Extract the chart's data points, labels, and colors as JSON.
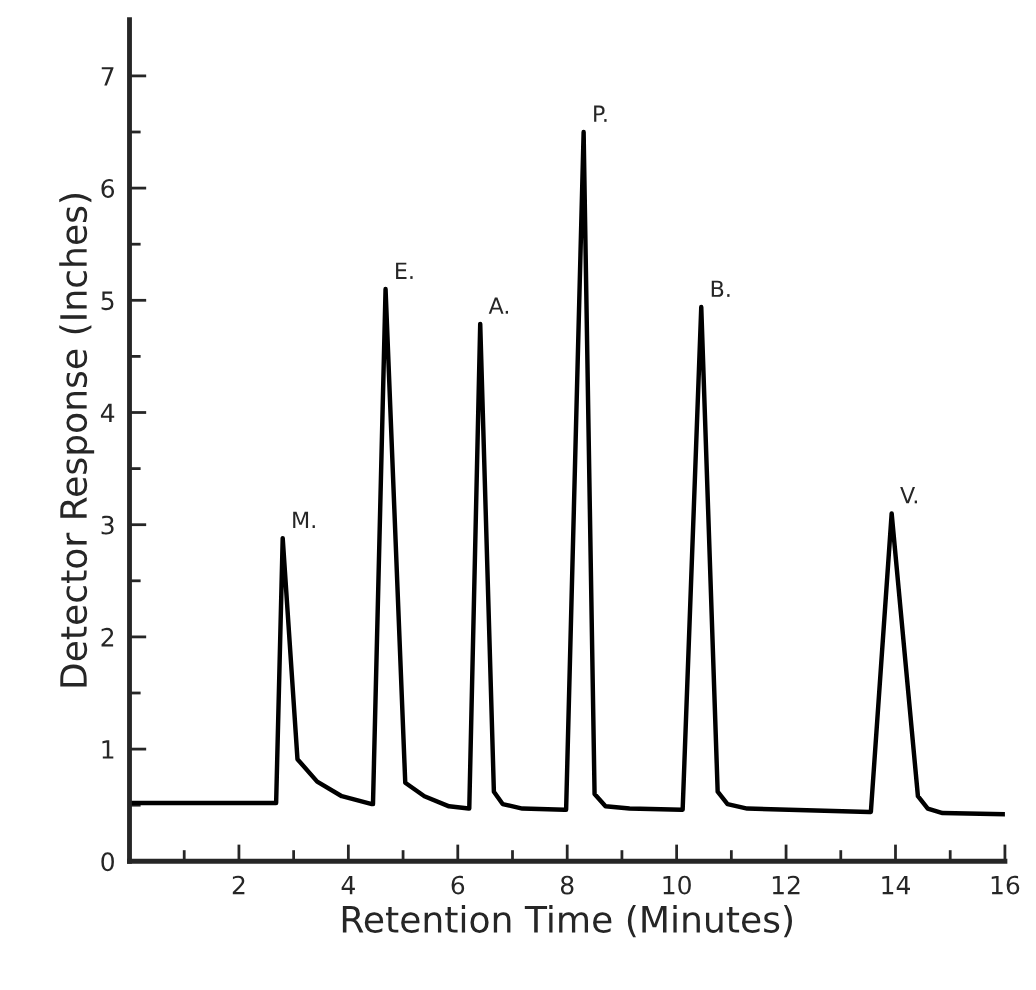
{
  "chart_data": {
    "type": "line",
    "xlabel": "Retention Time (Minutes)",
    "ylabel": "Detector Response (Inches)",
    "series": [
      {
        "color": "#000000",
        "x": [
          0,
          2.68,
          2.8,
          3.07,
          3.43,
          3.88,
          4.43,
          4.45,
          4.68,
          5.04,
          5.39,
          5.84,
          6.2,
          6.21,
          6.41,
          6.66,
          6.82,
          7.18,
          7.95,
          7.98,
          8.3,
          8.5,
          8.7,
          9.14,
          10.09,
          10.11,
          10.45,
          10.75,
          10.93,
          11.29,
          13.52,
          13.55,
          13.93,
          14.41,
          14.59,
          14.86,
          16.0
        ],
        "values": [
          0.52,
          0.52,
          2.88,
          0.91,
          0.71,
          0.58,
          0.51,
          0.51,
          5.1,
          0.7,
          0.58,
          0.49,
          0.47,
          0.47,
          4.79,
          0.62,
          0.51,
          0.47,
          0.46,
          0.46,
          6.5,
          0.6,
          0.49,
          0.47,
          0.46,
          0.46,
          4.94,
          0.62,
          0.51,
          0.47,
          0.44,
          0.44,
          3.1,
          0.58,
          0.47,
          0.43,
          0.42
        ]
      }
    ],
    "annotations": [
      {
        "text": "M.",
        "x": 2.8,
        "y": 2.88
      },
      {
        "text": "E.",
        "x": 4.68,
        "y": 5.1
      },
      {
        "text": "A.",
        "x": 6.41,
        "y": 4.79
      },
      {
        "text": "P.",
        "x": 8.3,
        "y": 6.5
      },
      {
        "text": "B.",
        "x": 10.45,
        "y": 4.94
      },
      {
        "text": "V.",
        "x": 13.93,
        "y": 3.1
      }
    ],
    "xlim": [
      0,
      16
    ],
    "ylim": [
      0,
      7.5
    ],
    "xticks": [
      {
        "value": 0,
        "label": null
      },
      {
        "value": 1,
        "label": null
      },
      2,
      {
        "value": 3,
        "label": null
      },
      4,
      {
        "value": 5,
        "label": null
      },
      6,
      {
        "value": 7,
        "label": null
      },
      8,
      {
        "value": 9,
        "label": null
      },
      10,
      {
        "value": 11,
        "label": null
      },
      12,
      {
        "value": 13,
        "label": null
      },
      14,
      {
        "value": 15,
        "label": null
      },
      16
    ],
    "yticks": [
      0,
      {
        "value": 0.5,
        "label": null
      },
      1,
      {
        "value": 1.5,
        "label": null
      },
      2,
      {
        "value": 2.5,
        "label": null
      },
      3,
      {
        "value": 3.5,
        "label": null
      },
      4,
      {
        "value": 4.5,
        "label": null
      },
      5,
      {
        "value": 5.5,
        "label": null
      },
      6,
      {
        "value": 6.5,
        "label": null
      },
      7
    ],
    "grid": false,
    "legend": false,
    "marker": "none",
    "line_style": "solid"
  }
}
